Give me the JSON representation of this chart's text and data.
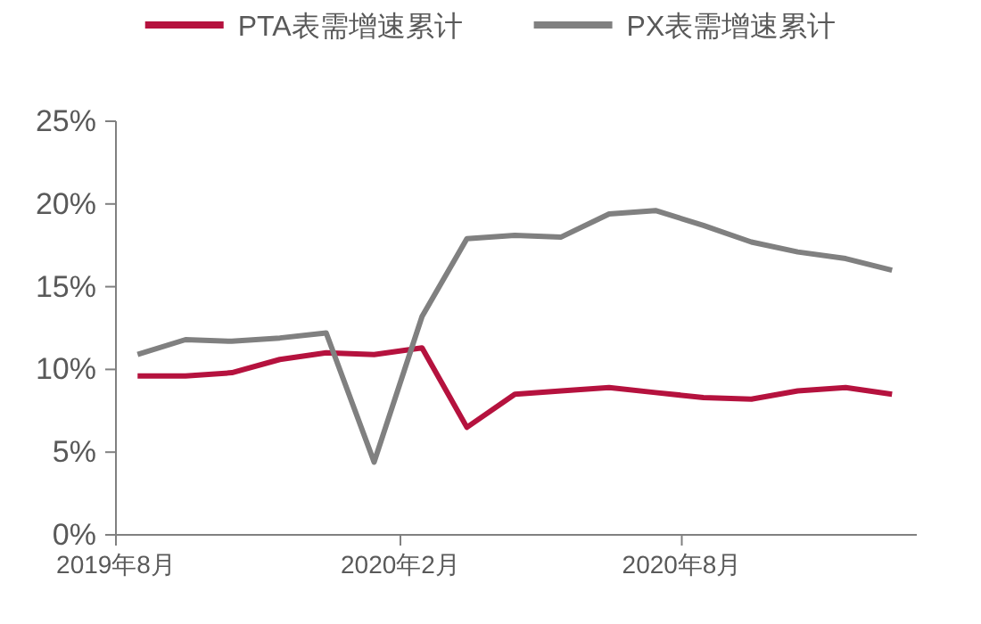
{
  "chart_data": {
    "type": "line",
    "x": [
      "2019-08-15",
      "2019-09-15",
      "2019-10-15",
      "2019-11-15",
      "2019-12-15",
      "2020-01-15",
      "2020-02-15",
      "2020-03-15",
      "2020-04-15",
      "2020-05-15",
      "2020-06-15",
      "2020-07-15",
      "2020-08-15",
      "2020-09-15",
      "2020-10-15",
      "2020-11-15",
      "2020-12-15"
    ],
    "series": [
      {
        "name": "PTA表需增速累计",
        "color": "#b5123e",
        "values": [
          9.6,
          9.6,
          9.8,
          10.6,
          11.0,
          10.9,
          11.3,
          6.5,
          8.5,
          8.7,
          8.9,
          8.6,
          8.3,
          8.2,
          8.7,
          8.9,
          8.5
        ]
      },
      {
        "name": "PX表需增速累计",
        "color": "#808080",
        "values": [
          10.9,
          11.8,
          11.7,
          11.9,
          12.2,
          4.4,
          13.2,
          17.9,
          18.1,
          18.0,
          19.4,
          19.6,
          18.7,
          17.7,
          17.1,
          16.7,
          16.0
        ]
      }
    ],
    "xlim": [
      "2019-08-01",
      "2020-12-31"
    ],
    "xticks": [
      {
        "value": "2019-08-01",
        "label": "2019年8月"
      },
      {
        "value": "2020-02-01",
        "label": "2020年2月"
      },
      {
        "value": "2020-08-01",
        "label": "2020年8月"
      }
    ],
    "ylim": [
      0,
      25
    ],
    "yticks": [
      {
        "value": 0,
        "label": "0%"
      },
      {
        "value": 5,
        "label": "5%"
      },
      {
        "value": 10,
        "label": "10%"
      },
      {
        "value": 15,
        "label": "15%"
      },
      {
        "value": 20,
        "label": "20%"
      },
      {
        "value": 25,
        "label": "25%"
      }
    ],
    "grid": false,
    "legend": "top",
    "marker": "none",
    "line_style": "solid"
  }
}
